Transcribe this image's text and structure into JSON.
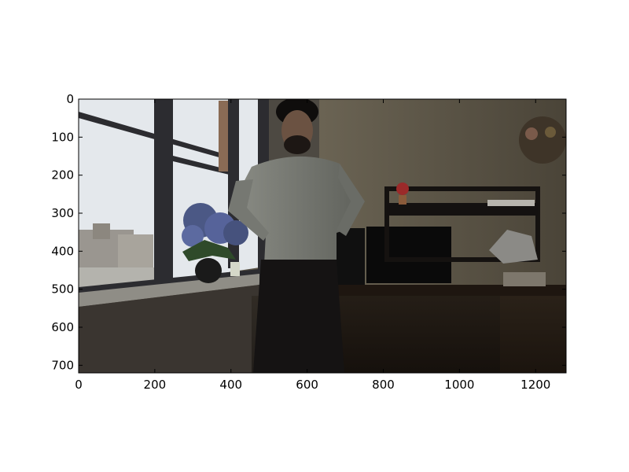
{
  "figure": {
    "background": "#ffffff",
    "image": {
      "description_colors": {
        "window_light": "#e9ecef",
        "frame": "#2b2b2e",
        "wall": "#5a5448",
        "wall_dark": "#2a2620",
        "shirt": "#7d7f78",
        "pants": "#141313",
        "hydrangea": "#4f5d8c",
        "desk": "#1f1610",
        "radiator": "#c9ccd0"
      },
      "x_extent": [
        0,
        1280
      ],
      "y_extent": [
        720,
        0
      ]
    },
    "x_axis": {
      "ticks": [
        0,
        200,
        400,
        600,
        800,
        1000,
        1200
      ],
      "labels": [
        "0",
        "200",
        "400",
        "600",
        "800",
        "1000",
        "1200"
      ]
    },
    "y_axis": {
      "ticks": [
        0,
        100,
        200,
        300,
        400,
        500,
        600,
        700
      ],
      "labels": [
        "0",
        "100",
        "200",
        "300",
        "400",
        "500",
        "600",
        "700"
      ]
    }
  }
}
